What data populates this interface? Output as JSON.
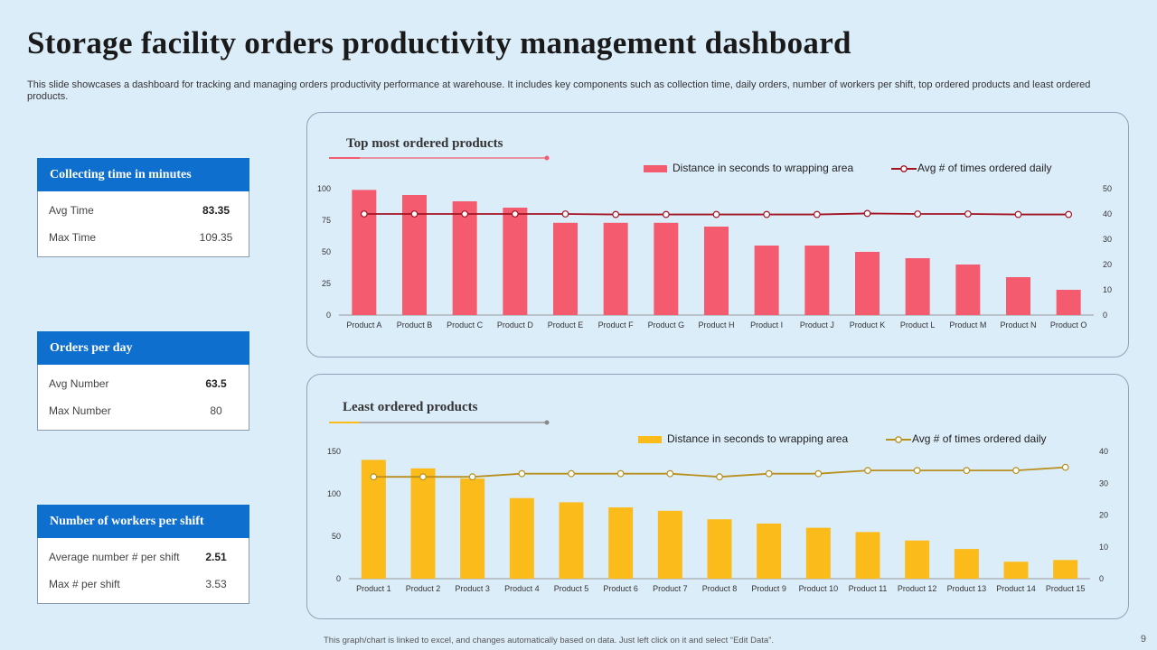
{
  "title": "Storage facility orders productivity management dashboard",
  "subtitle": "This slide showcases a dashboard for tracking and managing orders productivity performance at warehouse. It includes key components such as collection time, daily orders, number of workers per shift, top ordered products and least ordered products.",
  "cards": [
    {
      "header": "Collecting time in minutes",
      "rows": [
        {
          "label": "Avg Time",
          "value": "83.35",
          "bold": true
        },
        {
          "label": "Max Time",
          "value": "109.35",
          "bold": false
        }
      ]
    },
    {
      "header": "Orders per day",
      "rows": [
        {
          "label": "Avg Number",
          "value": "63.5",
          "bold": true
        },
        {
          "label": "Max Number",
          "value": "80",
          "bold": false
        }
      ]
    },
    {
      "header": "Number of workers per shift",
      "rows": [
        {
          "label": "Average number # per shift",
          "value": "2.51",
          "bold": true
        },
        {
          "label": "Max # per shift",
          "value": "3.53",
          "bold": false
        }
      ]
    }
  ],
  "footer": "This graph/chart is linked to excel, and changes automatically based on data. Just left click on it and select “Edit Data”.",
  "page_number": "9",
  "colors": {
    "accent_blue": "#0f6fcf",
    "bar_red": "#f45b6e",
    "line_red": "#a31323",
    "bar_yellow": "#fbbb1a",
    "line_gold": "#b8901d"
  },
  "chart_data": [
    {
      "type": "bar",
      "title": "Top most ordered products",
      "categories": [
        "Product A",
        "Product B",
        "Product C",
        "Product D",
        "Product E",
        "Product F",
        "Product G",
        "Product H",
        "Product I",
        "Product J",
        "Product K",
        "Product L",
        "Product M",
        "Product N",
        "Product O"
      ],
      "series": [
        {
          "name": "Distance in seconds to wrapping area",
          "type": "bar",
          "axis": "left",
          "color": "#f45b6e",
          "values": [
            99,
            95,
            90,
            85,
            73,
            73,
            73,
            70,
            55,
            55,
            50,
            45,
            40,
            30,
            20
          ]
        },
        {
          "name": "Avg # of times ordered daily",
          "type": "line",
          "axis": "right",
          "color": "#a31323",
          "values": [
            40,
            40,
            40,
            40,
            40,
            39.8,
            39.8,
            39.8,
            39.8,
            39.8,
            40.2,
            40,
            40,
            39.8,
            39.8
          ]
        }
      ],
      "ylim": [
        0,
        100
      ],
      "yticks": [
        0,
        25,
        50,
        75,
        100
      ],
      "y2lim": [
        0,
        50
      ],
      "y2ticks": [
        0,
        10,
        20,
        30,
        40,
        50
      ],
      "grid": false,
      "legend": "top-right"
    },
    {
      "type": "bar",
      "title": "Least ordered products",
      "categories": [
        "Product 1",
        "Product 2",
        "Product 3",
        "Product 4",
        "Product 5",
        "Product 6",
        "Product 7",
        "Product 8",
        "Product 9",
        "Product 10",
        "Product 11",
        "Product 12",
        "Product 13",
        "Product 14",
        "Product 15"
      ],
      "series": [
        {
          "name": "Distance in seconds to wrapping area",
          "type": "bar",
          "axis": "left",
          "color": "#fbbb1a",
          "values": [
            140,
            130,
            118,
            95,
            90,
            84,
            80,
            70,
            65,
            60,
            55,
            45,
            35,
            20,
            22
          ]
        },
        {
          "name": "Avg # of times ordered daily",
          "type": "line",
          "axis": "right",
          "color": "#b8901d",
          "values": [
            32,
            32,
            32,
            33,
            33,
            33,
            33,
            32,
            33,
            33,
            34,
            34,
            34,
            34,
            35
          ]
        }
      ],
      "ylim": [
        0,
        150
      ],
      "yticks": [
        0,
        50,
        100,
        150
      ],
      "y2lim": [
        0,
        40
      ],
      "y2ticks": [
        0,
        10,
        20,
        30,
        40
      ],
      "grid": false,
      "legend": "top-right"
    }
  ]
}
